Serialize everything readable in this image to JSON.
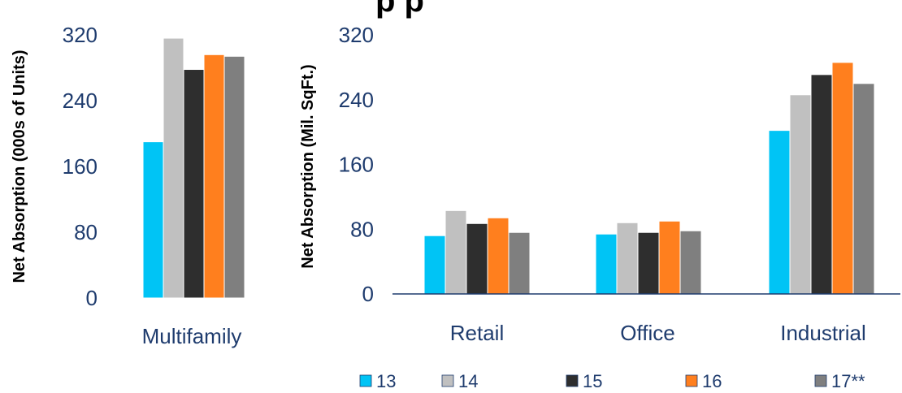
{
  "colors": {
    "13": "#00C4F5",
    "14": "#C0C0C0",
    "15": "#2E2E2E",
    "16": "#FF7F1E",
    "17**": "#7F7F7F",
    "text": "#1F3C6E",
    "axis": "#1F3C6E"
  },
  "chart_data": [
    {
      "type": "bar",
      "title": "",
      "ylabel": "Net Absorption (000s of Units)",
      "ylim": [
        0,
        320
      ],
      "yticks": [
        "0",
        "80",
        "160",
        "240",
        "320"
      ],
      "categories": [
        "Multifamily"
      ],
      "series": [
        {
          "name": "13",
          "values": [
            190
          ]
        },
        {
          "name": "14",
          "values": [
            316
          ]
        },
        {
          "name": "15",
          "values": [
            278
          ]
        },
        {
          "name": "16",
          "values": [
            296
          ]
        },
        {
          "name": "17**",
          "values": [
            294
          ]
        }
      ],
      "grid": false
    },
    {
      "type": "bar",
      "title": "",
      "ylabel": "Net Absorption (Mil. SqFt.)",
      "ylim": [
        0,
        320
      ],
      "yticks": [
        "0",
        "80",
        "160",
        "240",
        "320"
      ],
      "categories": [
        "Retail",
        "Office",
        "Industrial"
      ],
      "series": [
        {
          "name": "13",
          "values": [
            72,
            74,
            202
          ]
        },
        {
          "name": "14",
          "values": [
            103,
            88,
            246
          ]
        },
        {
          "name": "15",
          "values": [
            87,
            76,
            271
          ]
        },
        {
          "name": "16",
          "values": [
            94,
            90,
            286
          ]
        },
        {
          "name": "17**",
          "values": [
            76,
            78,
            260
          ]
        }
      ],
      "grid": false,
      "legend": "bottom"
    }
  ],
  "title_fragment": "p    p",
  "legend_items": [
    "13",
    "14",
    "15",
    "16",
    "17**"
  ]
}
